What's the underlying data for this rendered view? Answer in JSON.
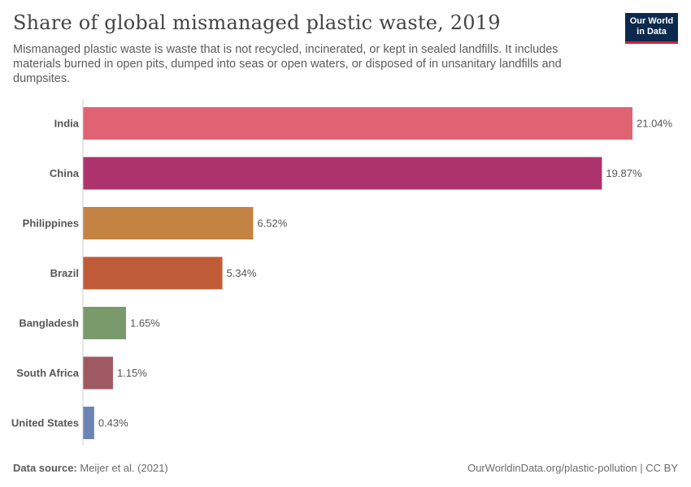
{
  "header": {
    "title": "Share of global mismanaged plastic waste, 2019",
    "subtitle": "Mismanaged plastic waste is waste that is not recycled, incinerated, or kept in sealed landfills. It includes materials burned in open pits, dumped into seas or open waters, or disposed of in unsanitary landfills and dumpsites.",
    "logo_line1": "Our World",
    "logo_line2": "in Data"
  },
  "footer": {
    "source_label": "Data source:",
    "source_value": "Meijer et al. (2021)",
    "url": "OurWorldinData.org/plastic-pollution | CC BY"
  },
  "chart_data": {
    "type": "bar",
    "orientation": "horizontal",
    "categories": [
      "India",
      "China",
      "Philippines",
      "Brazil",
      "Bangladesh",
      "South Africa",
      "United States"
    ],
    "values": [
      21.04,
      19.87,
      6.52,
      5.34,
      1.65,
      1.15,
      0.43
    ],
    "value_labels": [
      "21.04%",
      "19.87%",
      "6.52%",
      "5.34%",
      "1.65%",
      "1.15%",
      "0.43%"
    ],
    "colors": [
      "#e06374",
      "#ad336d",
      "#c48342",
      "#c05b38",
      "#7b9a6b",
      "#9e5a60",
      "#6b84b5"
    ],
    "unit": "%",
    "grid": false
  }
}
